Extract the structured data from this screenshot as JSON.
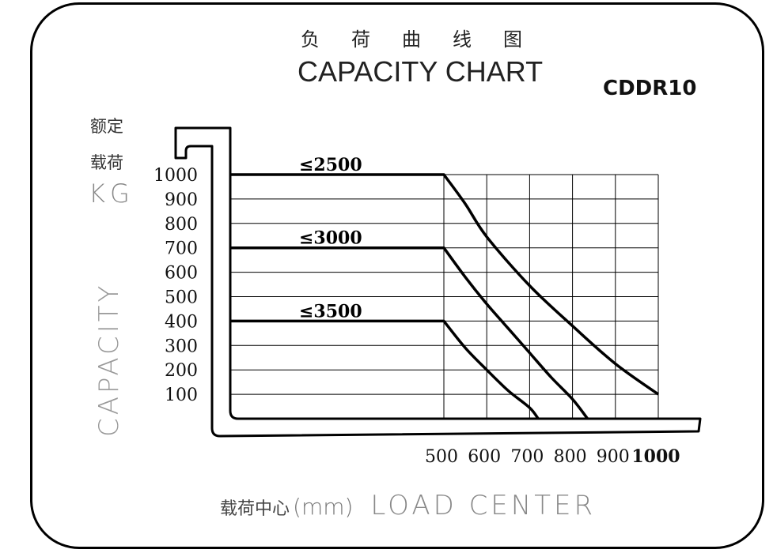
{
  "title_cn": "负荷曲线图",
  "title_en": "CAPACITY CHART",
  "model": "CDDR10",
  "y_axis": {
    "cn_line1": "额定",
    "cn_line2": "载荷",
    "unit": "KG",
    "label": "CAPACITY"
  },
  "x_axis": {
    "cn": "载荷中心",
    "unit": "(mm)",
    "label": "LOAD CENTER"
  },
  "chart_data": {
    "type": "line",
    "title": "CAPACITY CHART",
    "xlabel": "LOAD CENTER",
    "ylabel": "CAPACITY",
    "x_ticks": [
      500,
      600,
      700,
      800,
      900,
      1000
    ],
    "y_ticks": [
      100,
      200,
      300,
      400,
      500,
      600,
      700,
      800,
      900,
      1000
    ],
    "xlim": [
      500,
      1000
    ],
    "ylim": [
      0,
      1000
    ],
    "grid": true,
    "series": [
      {
        "name": "≤2500",
        "points": [
          [
            0,
            1000
          ],
          [
            500,
            1000
          ],
          [
            550,
            880
          ],
          [
            600,
            745
          ],
          [
            700,
            545
          ],
          [
            800,
            380
          ],
          [
            900,
            225
          ],
          [
            1000,
            100
          ]
        ]
      },
      {
        "name": "≤3000",
        "points": [
          [
            0,
            700
          ],
          [
            500,
            700
          ],
          [
            550,
            580
          ],
          [
            600,
            470
          ],
          [
            650,
            370
          ],
          [
            700,
            270
          ],
          [
            750,
            170
          ],
          [
            800,
            80
          ],
          [
            835,
            0
          ]
        ]
      },
      {
        "name": "≤3500",
        "points": [
          [
            0,
            400
          ],
          [
            500,
            400
          ],
          [
            550,
            290
          ],
          [
            600,
            200
          ],
          [
            650,
            115
          ],
          [
            700,
            45
          ],
          [
            720,
            0
          ]
        ]
      }
    ]
  }
}
